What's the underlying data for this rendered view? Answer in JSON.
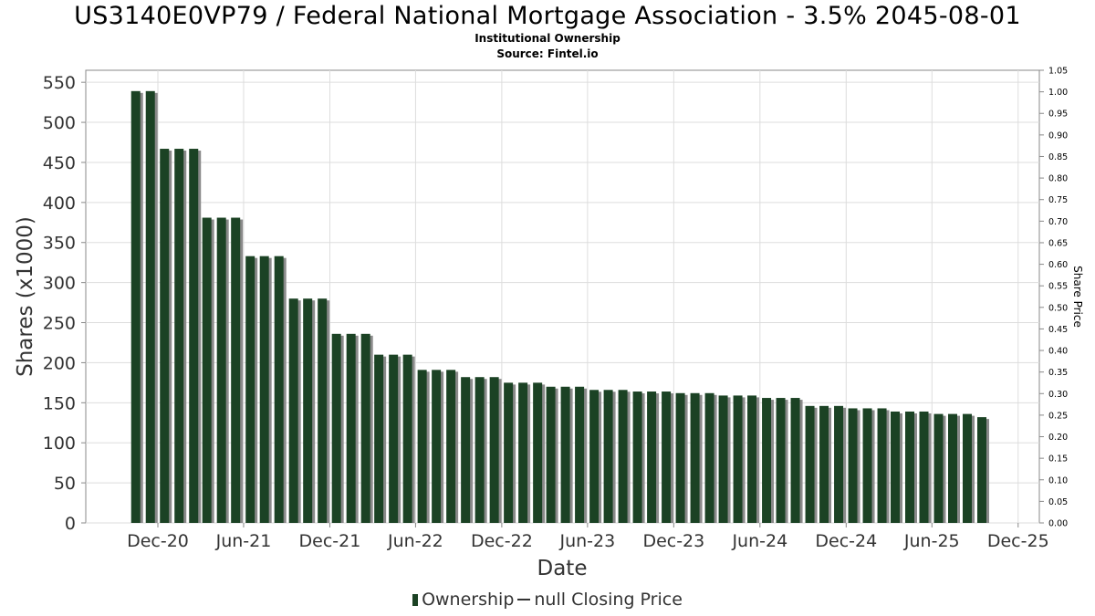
{
  "title": "US3140E0VP79 / Federal National Mortgage Association - 3.5% 2045-08-01",
  "subtitle1": "Institutional Ownership",
  "subtitle2": "Source: Fintel.io",
  "legend": {
    "ownership": "Ownership",
    "closing": "null Closing Price"
  },
  "colors": {
    "bar": "#1b4224",
    "bar_shadow": "#8a8a8a",
    "grid": "#dddddd"
  },
  "chart_data": {
    "type": "bar",
    "title": "US3140E0VP79 / Federal National Mortgage Association - 3.5% 2045-08-01",
    "xlabel": "Date",
    "ylabel": "Shares (x1000)",
    "y2label": "Share Price",
    "ylim": [
      0,
      565
    ],
    "y2lim": [
      0,
      1.05
    ],
    "yticks": [
      0,
      50,
      100,
      150,
      200,
      250,
      300,
      350,
      400,
      450,
      500,
      550
    ],
    "y2ticks": [
      "0.00",
      "0.05",
      "0.10",
      "0.15",
      "0.20",
      "0.25",
      "0.30",
      "0.35",
      "0.40",
      "0.45",
      "0.50",
      "0.55",
      "0.60",
      "0.65",
      "0.70",
      "0.75",
      "0.80",
      "0.85",
      "0.90",
      "0.95",
      "1.00",
      "1.05"
    ],
    "xlim": [
      "2020-07-01",
      "2026-01-15"
    ],
    "xticks": [
      {
        "label": "Dec-20",
        "date": "2020-12-01"
      },
      {
        "label": "Jun-21",
        "date": "2021-06-01"
      },
      {
        "label": "Dec-21",
        "date": "2021-12-01"
      },
      {
        "label": "Jun-22",
        "date": "2022-06-01"
      },
      {
        "label": "Dec-22",
        "date": "2022-12-01"
      },
      {
        "label": "Jun-23",
        "date": "2023-06-01"
      },
      {
        "label": "Dec-23",
        "date": "2023-12-01"
      },
      {
        "label": "Jun-24",
        "date": "2024-06-01"
      },
      {
        "label": "Dec-24",
        "date": "2024-12-01"
      },
      {
        "label": "Jun-25",
        "date": "2025-06-01"
      },
      {
        "label": "Dec-25",
        "date": "2025-12-01"
      }
    ],
    "grid": true,
    "legend_position": "bottom-center",
    "series": [
      {
        "name": "Ownership",
        "points": [
          {
            "x": "2020-10-15",
            "y": 539
          },
          {
            "x": "2020-11-15",
            "y": 539
          },
          {
            "x": "2020-12-15",
            "y": 467
          },
          {
            "x": "2021-01-15",
            "y": 467
          },
          {
            "x": "2021-02-15",
            "y": 467
          },
          {
            "x": "2021-03-15",
            "y": 381
          },
          {
            "x": "2021-04-15",
            "y": 381
          },
          {
            "x": "2021-05-15",
            "y": 381
          },
          {
            "x": "2021-06-15",
            "y": 333
          },
          {
            "x": "2021-07-15",
            "y": 333
          },
          {
            "x": "2021-08-15",
            "y": 333
          },
          {
            "x": "2021-09-15",
            "y": 280
          },
          {
            "x": "2021-10-15",
            "y": 280
          },
          {
            "x": "2021-11-15",
            "y": 280
          },
          {
            "x": "2021-12-15",
            "y": 236
          },
          {
            "x": "2022-01-15",
            "y": 236
          },
          {
            "x": "2022-02-15",
            "y": 236
          },
          {
            "x": "2022-03-15",
            "y": 210
          },
          {
            "x": "2022-04-15",
            "y": 210
          },
          {
            "x": "2022-05-15",
            "y": 210
          },
          {
            "x": "2022-06-15",
            "y": 191
          },
          {
            "x": "2022-07-15",
            "y": 191
          },
          {
            "x": "2022-08-15",
            "y": 191
          },
          {
            "x": "2022-09-15",
            "y": 182
          },
          {
            "x": "2022-10-15",
            "y": 182
          },
          {
            "x": "2022-11-15",
            "y": 182
          },
          {
            "x": "2022-12-15",
            "y": 175
          },
          {
            "x": "2023-01-15",
            "y": 175
          },
          {
            "x": "2023-02-15",
            "y": 175
          },
          {
            "x": "2023-03-15",
            "y": 170
          },
          {
            "x": "2023-04-15",
            "y": 170
          },
          {
            "x": "2023-05-15",
            "y": 170
          },
          {
            "x": "2023-06-15",
            "y": 166
          },
          {
            "x": "2023-07-15",
            "y": 166
          },
          {
            "x": "2023-08-15",
            "y": 166
          },
          {
            "x": "2023-09-15",
            "y": 164
          },
          {
            "x": "2023-10-15",
            "y": 164
          },
          {
            "x": "2023-11-15",
            "y": 164
          },
          {
            "x": "2023-12-15",
            "y": 162
          },
          {
            "x": "2024-01-15",
            "y": 162
          },
          {
            "x": "2024-02-15",
            "y": 162
          },
          {
            "x": "2024-03-15",
            "y": 159
          },
          {
            "x": "2024-04-15",
            "y": 159
          },
          {
            "x": "2024-05-15",
            "y": 159
          },
          {
            "x": "2024-06-15",
            "y": 156
          },
          {
            "x": "2024-07-15",
            "y": 156
          },
          {
            "x": "2024-08-15",
            "y": 156
          },
          {
            "x": "2024-09-15",
            "y": 146
          },
          {
            "x": "2024-10-15",
            "y": 146
          },
          {
            "x": "2024-11-15",
            "y": 146
          },
          {
            "x": "2024-12-15",
            "y": 143
          },
          {
            "x": "2025-01-15",
            "y": 143
          },
          {
            "x": "2025-02-15",
            "y": 143
          },
          {
            "x": "2025-03-15",
            "y": 139
          },
          {
            "x": "2025-04-15",
            "y": 139
          },
          {
            "x": "2025-05-15",
            "y": 139
          },
          {
            "x": "2025-06-15",
            "y": 136
          },
          {
            "x": "2025-07-15",
            "y": 136
          },
          {
            "x": "2025-08-15",
            "y": 136
          },
          {
            "x": "2025-09-15",
            "y": 132
          }
        ]
      },
      {
        "name": "null Closing Price",
        "points": []
      }
    ]
  }
}
